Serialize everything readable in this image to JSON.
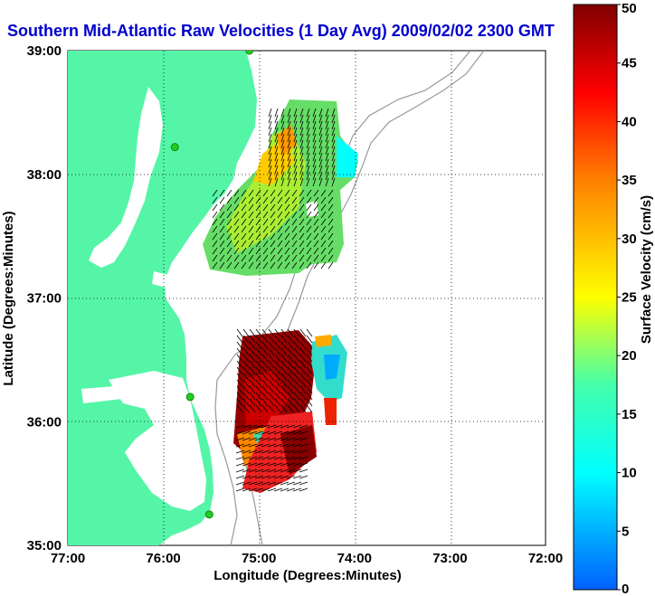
{
  "title": "Southern Mid-Atlantic Raw Velocities (1 Day Avg) 2009/02/02 2300 GMT",
  "xlabel": "Longitude (Degrees:Minutes)",
  "ylabel": "Latitude (Degrees:Minutes)",
  "colorbar_label": "Surface Velocity (cm/s)",
  "colors": {
    "land": "#55f5a8",
    "title": "#0000cc",
    "grid": "#000000",
    "bathymetry": "#999999",
    "station": "#22cc22"
  },
  "chart_data": {
    "type": "map",
    "x_ticks": [
      "77:00",
      "76:00",
      "75:00",
      "74:00",
      "73:00",
      "72:00"
    ],
    "y_ticks": [
      "39:00",
      "38:00",
      "37:00",
      "36:00",
      "35:00"
    ],
    "x_range": [
      -77,
      -72
    ],
    "y_range": [
      35,
      39
    ],
    "grid": true,
    "colorbar": {
      "min": 0,
      "max": 50,
      "ticks": [
        "50",
        "45",
        "40",
        "35",
        "30",
        "25",
        "20",
        "15",
        "10",
        "5",
        "0"
      ]
    },
    "stations": [
      {
        "lon": -75.1,
        "lat": 39.0
      },
      {
        "lon": -75.88,
        "lat": 38.22
      },
      {
        "lon": -75.72,
        "lat": 36.2
      },
      {
        "lon": -75.52,
        "lat": 35.25
      }
    ]
  }
}
